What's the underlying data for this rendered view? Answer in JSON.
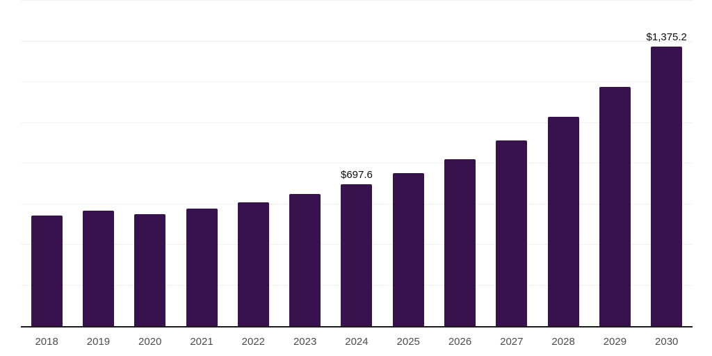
{
  "chart_data": {
    "type": "bar",
    "title": "",
    "xlabel": "",
    "ylabel": "",
    "categories": [
      "2018",
      "2019",
      "2020",
      "2021",
      "2022",
      "2023",
      "2024",
      "2025",
      "2026",
      "2027",
      "2028",
      "2029",
      "2030"
    ],
    "values": [
      545,
      569,
      549,
      578,
      610,
      648,
      697.6,
      751,
      821,
      912,
      1030,
      1177,
      1375.2
    ],
    "data_labels": [
      "",
      "",
      "",
      "",
      "",
      "",
      "$697.6",
      "",
      "",
      "",
      "",
      "",
      "$1,375.2"
    ],
    "value_prefix": "$",
    "ylim": [
      0,
      1600
    ],
    "gridline_step": 200,
    "grid": true,
    "legend_position": "none"
  },
  "style": {
    "bar_color": "#37124d",
    "grid_color": "#f1f1f3",
    "axis_color": "#1c1c1c",
    "tick_label_color": "#4d4d4d",
    "data_label_color": "#0d0d0d",
    "background_color": "#ffffff"
  }
}
